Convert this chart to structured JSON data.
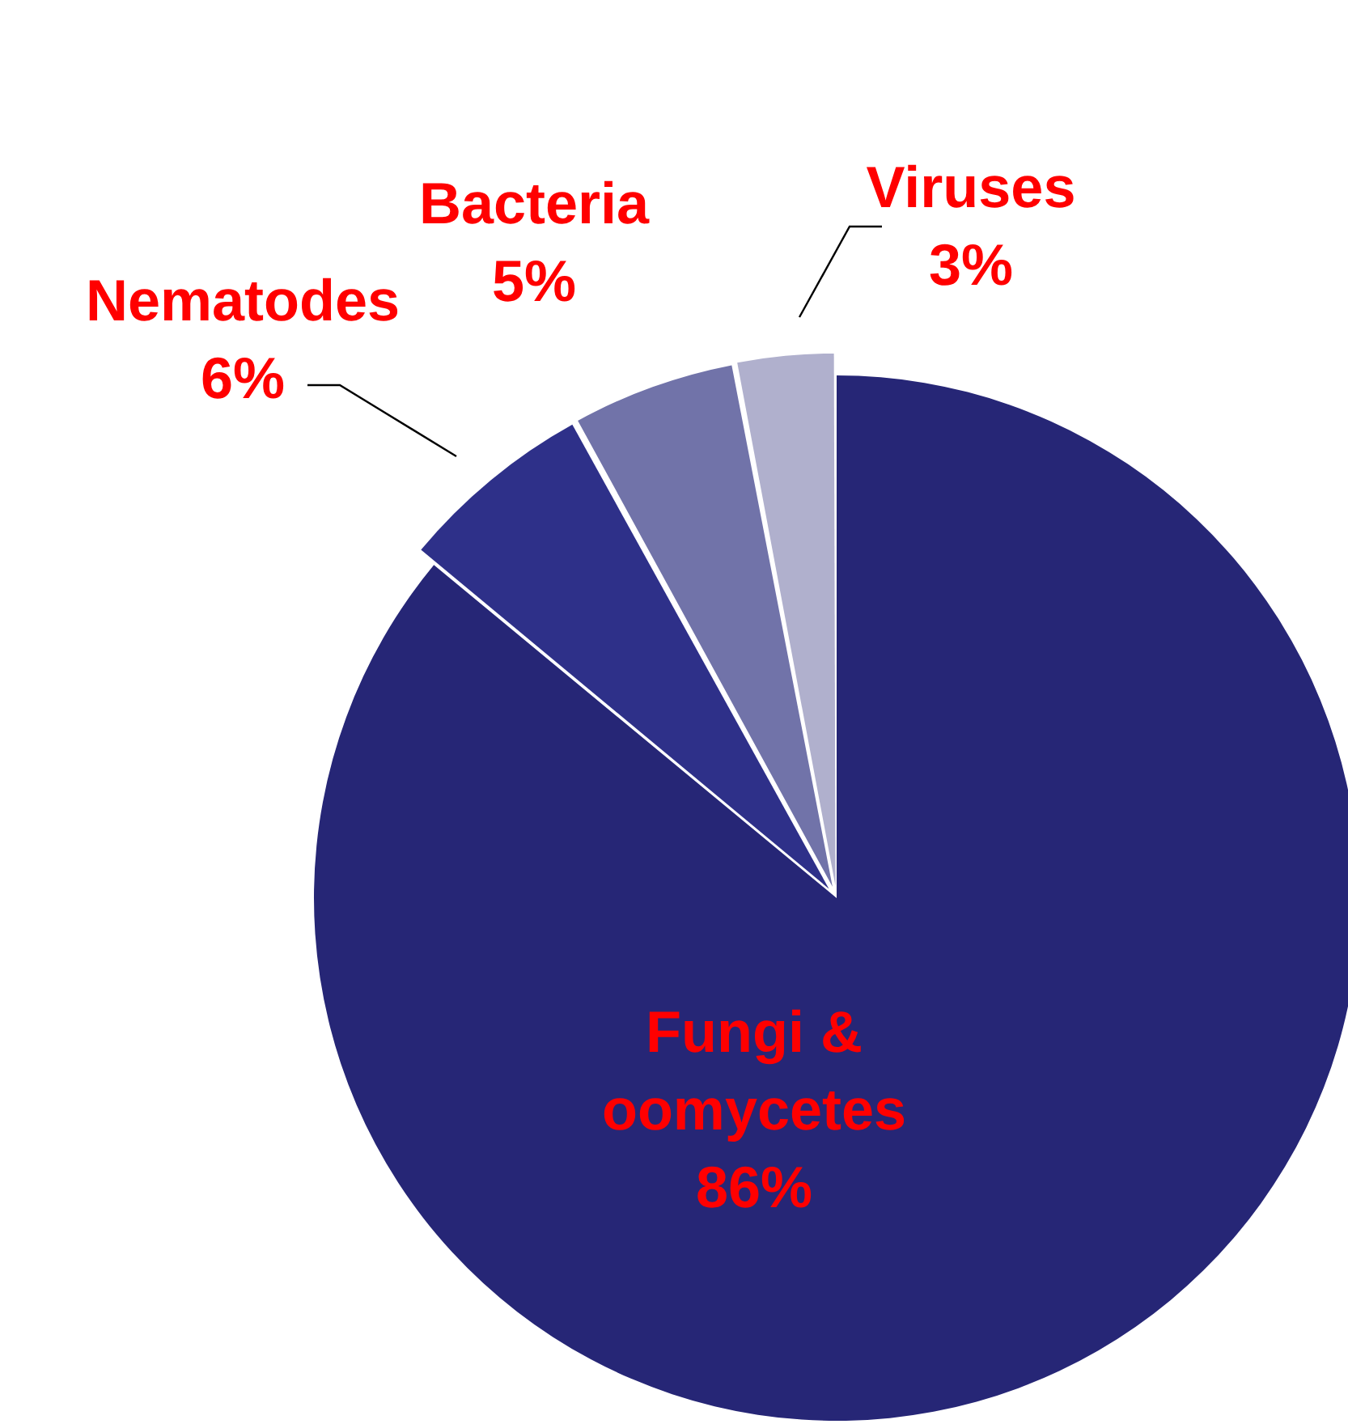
{
  "chart_data": {
    "type": "pie",
    "categories": [
      "Fungi & oomycetes",
      "Nematodes",
      "Bacteria",
      "Viruses"
    ],
    "values": [
      86,
      6,
      5,
      3
    ],
    "colors": [
      "#262676",
      "#2e3089",
      "#7173a9",
      "#b0b0cd"
    ],
    "value_labels": [
      "86%",
      "6%",
      "5%",
      "3%"
    ],
    "legend": false
  }
}
